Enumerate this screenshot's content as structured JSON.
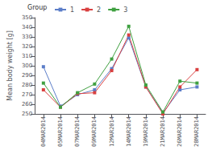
{
  "chart_data": {
    "type": "line",
    "categories": [
      "04MAR2014",
      "05MAR2014",
      "07MAR2014",
      "09MAR2014",
      "12MAR2014",
      "14MAR2014",
      "19MAR2014",
      "21MAR2014",
      "26MAR2014",
      "28MAR2014"
    ],
    "series": [
      {
        "name": "1",
        "color": "#5b7dc8",
        "values": [
          299,
          258,
          270,
          275,
          297,
          329,
          278,
          251,
          275,
          278
        ]
      },
      {
        "name": "2",
        "color": "#d94040",
        "values": [
          275,
          257,
          271,
          272,
          295,
          332,
          278,
          250,
          278,
          296
        ]
      },
      {
        "name": "3",
        "color": "#3fa040",
        "values": [
          282,
          257,
          272,
          281,
          307,
          341,
          280,
          252,
          284,
          282
        ]
      }
    ],
    "marker": "square",
    "ylabel": "Mean body weight [g]",
    "legend_title": "Group",
    "legend": "upper left",
    "ylim": [
      250,
      350
    ],
    "yticks": [
      250,
      260,
      270,
      280,
      290,
      300,
      310,
      320,
      330,
      340,
      350
    ],
    "grid": false
  }
}
